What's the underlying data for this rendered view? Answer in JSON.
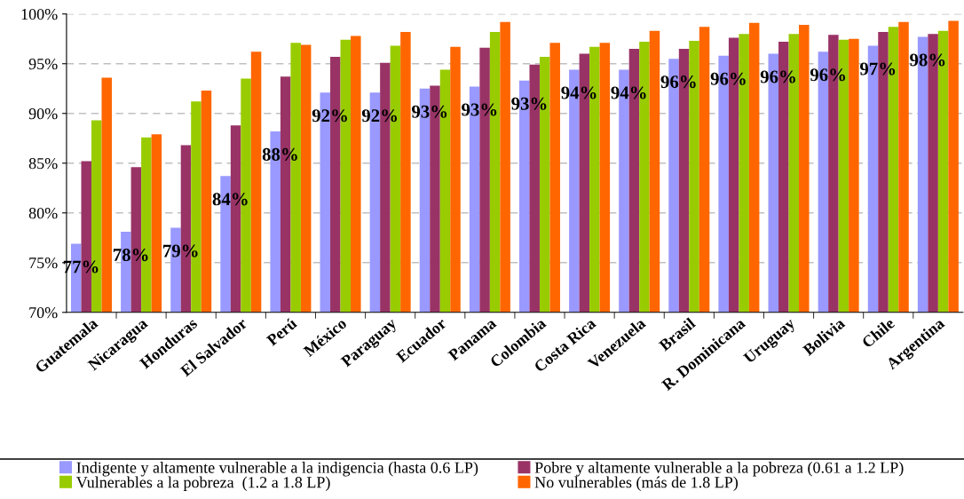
{
  "chart_data": {
    "type": "bar",
    "categories": [
      "Guatemala",
      "Nicaragua",
      "Honduras",
      "El Salvador",
      "Perú",
      "México",
      "Paraguay",
      "Ecuador",
      "Panama",
      "Colombia",
      "Costa Rica",
      "Venezuela",
      "Brasil",
      "R. Dominicana",
      "Uruguay",
      "Bolivia",
      "Chile",
      "Argentina"
    ],
    "series": [
      {
        "name": "Indigente y altamente vulnerable a la indigencia (hasta 0.6 LP)",
        "color": "#9999ff",
        "values": [
          76.9,
          78.1,
          78.5,
          83.7,
          88.2,
          92.1,
          92.1,
          92.5,
          92.7,
          93.3,
          94.4,
          94.4,
          95.5,
          95.8,
          96.0,
          96.2,
          96.8,
          97.7
        ],
        "value_labels": [
          "77%",
          "78%",
          "79%",
          "84%",
          "88%",
          "92%",
          "92%",
          "93%",
          "93%",
          "93%",
          "94%",
          "94%",
          "96%",
          "96%",
          "96%",
          "96%",
          "97%",
          "98%"
        ]
      },
      {
        "name": "Pobre y altamente vulnerable a la pobreza (0.61 a 1.2 LP)",
        "color": "#993366",
        "values": [
          85.2,
          84.6,
          86.8,
          88.8,
          93.7,
          95.7,
          95.1,
          92.8,
          96.6,
          94.9,
          96.0,
          96.5,
          96.5,
          97.6,
          97.2,
          97.9,
          98.2,
          98.0
        ]
      },
      {
        "name": "Vulnerables a la pobreza  (1.2 a 1.8 LP)",
        "color": "#99cc00",
        "values": [
          89.3,
          87.6,
          91.2,
          93.5,
          97.1,
          97.4,
          96.8,
          94.4,
          98.2,
          95.7,
          96.7,
          97.2,
          97.3,
          98.0,
          98.0,
          97.4,
          98.7,
          98.3
        ]
      },
      {
        "name": "No vulnerables (más de 1.8 LP)",
        "color": "#ff6600",
        "values": [
          93.6,
          87.9,
          92.3,
          96.2,
          96.9,
          97.8,
          98.2,
          96.7,
          99.2,
          97.1,
          97.1,
          98.3,
          98.7,
          99.1,
          98.9,
          97.5,
          99.2,
          99.3
        ]
      }
    ],
    "ylim": [
      70,
      100
    ],
    "yticks": [
      {
        "value": 70,
        "label": "70%"
      },
      {
        "value": 75,
        "label": "75%"
      },
      {
        "value": 80,
        "label": "80%"
      },
      {
        "value": 85,
        "label": "85%"
      },
      {
        "value": 90,
        "label": "90%"
      },
      {
        "value": 95,
        "label": "95%"
      },
      {
        "value": 100,
        "label": "100%"
      }
    ],
    "grid": "y",
    "legend": "bottom"
  }
}
